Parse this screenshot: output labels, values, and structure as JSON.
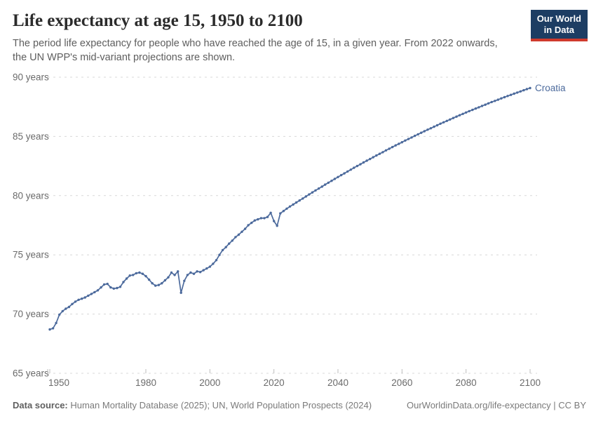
{
  "header": {
    "title": "Life expectancy at age 15, 1950 to 2100",
    "subtitle": "The period life expectancy for people who have reached the age of 15, in a given year. From 2022 onwards, the UN WPP's mid-variant projections are shown.",
    "logo": {
      "line1": "Our World",
      "line2": "in Data"
    }
  },
  "footer": {
    "source_bold": "Data source:",
    "source_rest": " Human Mortality Database (2025); UN, World Population Prospects (2024)",
    "credit": "OurWorldinData.org/life-expectancy | CC BY"
  },
  "colors": {
    "line": "#4c6a9c",
    "logo_navy": "#1d3d63",
    "logo_red": "#cf3a2d",
    "grid": "#d8d8d8",
    "tick_text": "#6b6b6b"
  },
  "chart_data": {
    "type": "line",
    "title": "Life expectancy at age 15, 1950 to 2100",
    "entity": "Croatia",
    "line_color": "#4c6a9c",
    "xlim": [
      1950,
      2100
    ],
    "ylim": [
      65,
      90
    ],
    "x_ticks": [
      1950,
      1980,
      2000,
      2020,
      2040,
      2060,
      2080,
      2100
    ],
    "y_ticks": [
      65,
      70,
      75,
      80,
      85,
      90
    ],
    "y_tick_suffix": " years",
    "grid": "horizontal-dashed",
    "legend_position": "end-of-line",
    "x": [
      1950,
      1951,
      1952,
      1953,
      1954,
      1955,
      1956,
      1957,
      1958,
      1959,
      1960,
      1961,
      1962,
      1963,
      1964,
      1965,
      1966,
      1967,
      1968,
      1969,
      1970,
      1971,
      1972,
      1973,
      1974,
      1975,
      1976,
      1977,
      1978,
      1979,
      1980,
      1981,
      1982,
      1983,
      1984,
      1985,
      1986,
      1987,
      1988,
      1989,
      1990,
      1991,
      1992,
      1993,
      1994,
      1995,
      1996,
      1997,
      1998,
      1999,
      2000,
      2001,
      2002,
      2003,
      2004,
      2005,
      2006,
      2007,
      2008,
      2009,
      2010,
      2011,
      2012,
      2013,
      2014,
      2015,
      2016,
      2017,
      2018,
      2019,
      2020,
      2021,
      2022,
      2023,
      2024,
      2025,
      2026,
      2027,
      2028,
      2029,
      2030,
      2031,
      2032,
      2033,
      2034,
      2035,
      2036,
      2037,
      2038,
      2039,
      2040,
      2041,
      2042,
      2043,
      2044,
      2045,
      2046,
      2047,
      2048,
      2049,
      2050,
      2051,
      2052,
      2053,
      2054,
      2055,
      2056,
      2057,
      2058,
      2059,
      2060,
      2061,
      2062,
      2063,
      2064,
      2065,
      2066,
      2067,
      2068,
      2069,
      2070,
      2071,
      2072,
      2073,
      2074,
      2075,
      2076,
      2077,
      2078,
      2079,
      2080,
      2081,
      2082,
      2083,
      2084,
      2085,
      2086,
      2087,
      2088,
      2089,
      2090,
      2091,
      2092,
      2093,
      2094,
      2095,
      2096,
      2097,
      2098,
      2099,
      2100
    ],
    "values": [
      68.7,
      68.8,
      69.25,
      69.95,
      70.25,
      70.45,
      70.6,
      70.85,
      71.05,
      71.2,
      71.3,
      71.4,
      71.55,
      71.7,
      71.85,
      72.0,
      72.25,
      72.5,
      72.55,
      72.25,
      72.15,
      72.2,
      72.3,
      72.7,
      73.0,
      73.25,
      73.3,
      73.45,
      73.5,
      73.4,
      73.2,
      72.9,
      72.6,
      72.4,
      72.45,
      72.6,
      72.85,
      73.1,
      73.5,
      73.3,
      73.6,
      71.8,
      72.8,
      73.3,
      73.5,
      73.4,
      73.6,
      73.55,
      73.7,
      73.85,
      74.0,
      74.25,
      74.55,
      75.0,
      75.4,
      75.65,
      75.95,
      76.2,
      76.5,
      76.7,
      76.95,
      77.2,
      77.5,
      77.7,
      77.9,
      78.0,
      78.1,
      78.1,
      78.2,
      78.55,
      77.85,
      77.45,
      78.5,
      78.7,
      78.9,
      79.08,
      79.25,
      79.42,
      79.59,
      79.76,
      79.93,
      80.1,
      80.27,
      80.44,
      80.6,
      80.76,
      80.93,
      81.09,
      81.25,
      81.41,
      81.57,
      81.73,
      81.88,
      82.04,
      82.19,
      82.35,
      82.5,
      82.65,
      82.8,
      82.95,
      83.09,
      83.24,
      83.39,
      83.53,
      83.67,
      83.82,
      83.96,
      84.1,
      84.24,
      84.37,
      84.51,
      84.65,
      84.78,
      84.91,
      85.05,
      85.18,
      85.31,
      85.44,
      85.57,
      85.69,
      85.82,
      85.94,
      86.07,
      86.19,
      86.31,
      86.43,
      86.55,
      86.67,
      86.79,
      86.9,
      87.02,
      87.13,
      87.24,
      87.35,
      87.46,
      87.57,
      87.68,
      87.79,
      87.9,
      88.0,
      88.1,
      88.21,
      88.31,
      88.41,
      88.51,
      88.61,
      88.7,
      88.8,
      88.9,
      88.99,
      89.08
    ]
  }
}
